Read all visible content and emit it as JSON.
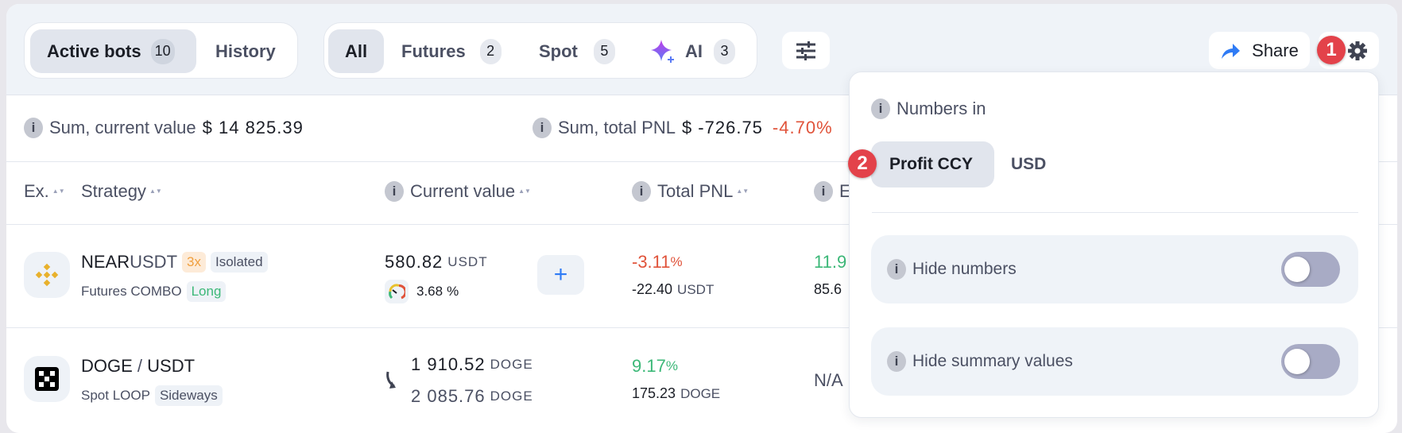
{
  "tabs": {
    "active_bots": {
      "label": "Active bots",
      "count": "10"
    },
    "history": {
      "label": "History"
    }
  },
  "filters": [
    {
      "label": "All"
    },
    {
      "label": "Futures",
      "count": "2"
    },
    {
      "label": "Spot",
      "count": "5"
    },
    {
      "label": "AI",
      "count": "3"
    }
  ],
  "toolbar": {
    "share_label": "Share",
    "badge_1": "1",
    "badge_2": "2"
  },
  "summary": {
    "current_value_label": "Sum, current value",
    "current_value": "$ 14 825.39",
    "total_pnl_label": "Sum, total PNL",
    "total_pnl": "$ -726.75",
    "total_pnl_pct": "-4.70%"
  },
  "columns": {
    "exchange": "Ex.",
    "strategy": "Strategy",
    "current_value": "Current value",
    "total_pnl": "Total PNL",
    "next": "E"
  },
  "rows": [
    {
      "base": "NEAR",
      "quote": "USDT",
      "pair_sep": "",
      "leverage": "3x",
      "margin": "Isolated",
      "strategy": "Futures COMBO",
      "direction": "Long",
      "value": "580.82",
      "value_ccy": "USDT",
      "risk_pct": "3.68",
      "risk_unit": "%",
      "pnl_pct": "-3.11",
      "pnl_unit": "%",
      "pnl_abs": "-22.40",
      "pnl_ccy": "USDT",
      "next_top": "11.9",
      "next_bottom": "85.6"
    },
    {
      "base": "DOGE",
      "quote": "USDT",
      "pair_sep": " / ",
      "strategy": "Spot LOOP",
      "direction": "Sideways",
      "value_top": "1 910.52",
      "value_top_ccy": "DOGE",
      "value_bottom": "2 085.76",
      "value_bottom_ccy": "DOGE",
      "pnl_pct": "9.17",
      "pnl_unit": "%",
      "pnl_abs": "175.23",
      "pnl_ccy": "DOGE",
      "next": "N/A"
    }
  ],
  "panel": {
    "numbers_in_label": "Numbers in",
    "options": [
      "Profit CCY",
      "USD"
    ],
    "selected": "Profit CCY",
    "hide_numbers": {
      "label": "Hide numbers",
      "on": false
    },
    "hide_summary": {
      "label": "Hide summary values",
      "on": false
    }
  },
  "colors": {
    "negative": "#e0533a",
    "positive": "#3cb878",
    "accent": "#2f7bf5",
    "badge": "#e3424a"
  }
}
